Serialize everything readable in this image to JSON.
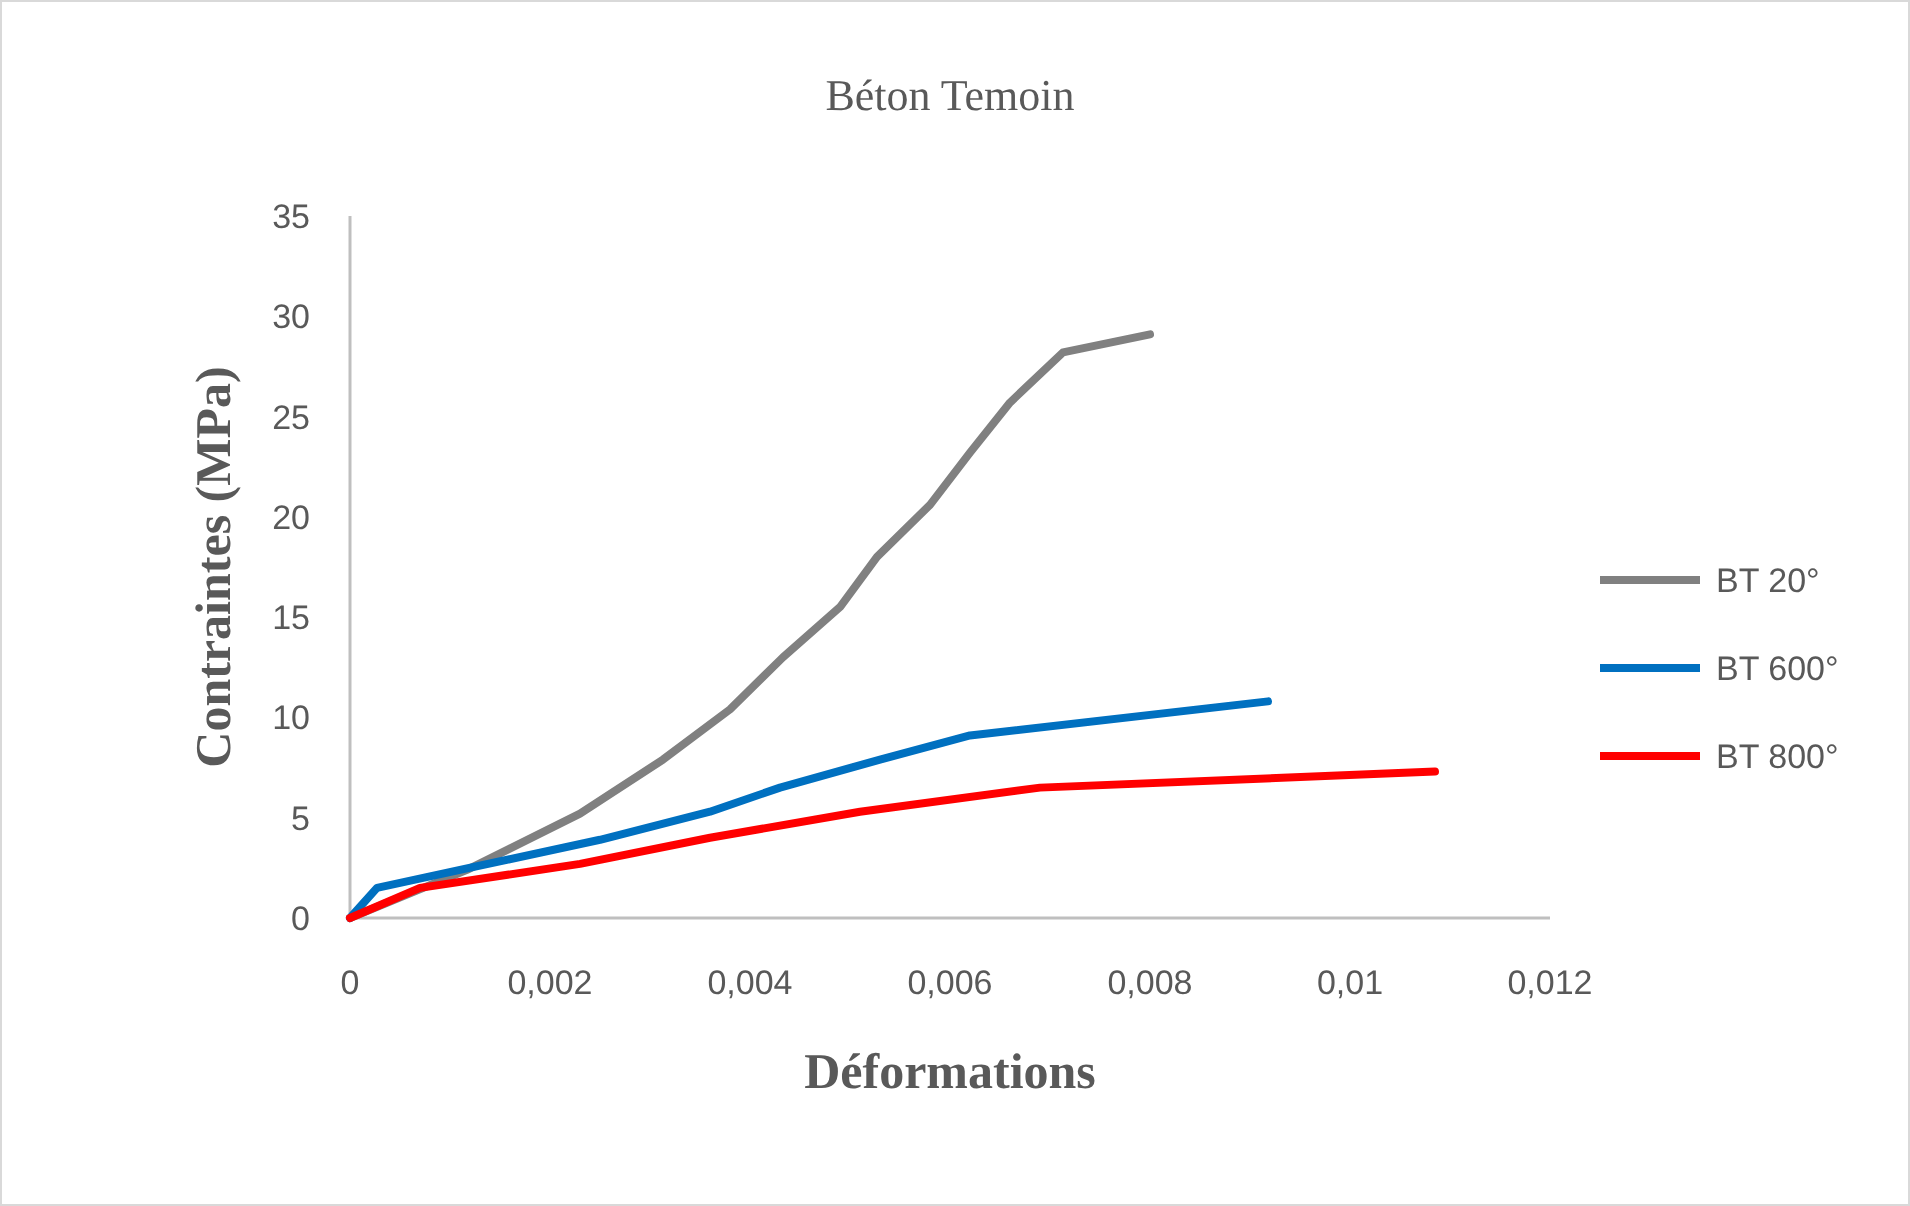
{
  "chart_data": {
    "type": "line",
    "title": "Béton Temoin",
    "xlabel": "Déformations",
    "ylabel": "Contraintes (MPa)",
    "xlim": [
      0,
      0.012
    ],
    "xticks": [
      {
        "value": 0,
        "label": "0"
      },
      {
        "value": 0.002,
        "label": "0,002"
      },
      {
        "value": 0.004,
        "label": "0,004"
      },
      {
        "value": 0.006,
        "label": "0,006"
      },
      {
        "value": 0.008,
        "label": "0,008"
      },
      {
        "value": 0.01,
        "label": "0,01"
      },
      {
        "value": 0.012,
        "label": "0,012"
      }
    ],
    "ylim": [
      0,
      35
    ],
    "yticks": [
      0,
      5,
      10,
      15,
      20,
      25,
      30,
      35
    ],
    "grid": false,
    "legend": "right",
    "marker": "none",
    "line_style": "solid",
    "series": [
      {
        "name": "BT 20°",
        "color": "#808080",
        "x": [
          0,
          0.00117,
          0.0023,
          0.00313,
          0.0038,
          0.00433,
          0.0049,
          0.00527,
          0.0058,
          0.0062,
          0.0066,
          0.00713,
          0.008
        ],
        "values": [
          0,
          2.4,
          5.2,
          7.9,
          10.4,
          13.0,
          15.5,
          18.0,
          20.6,
          23.2,
          25.7,
          28.2,
          29.1
        ]
      },
      {
        "name": "BT 600°",
        "color": "#0070c0",
        "x": [
          0,
          0.00027,
          0.0011,
          0.0025,
          0.0036,
          0.0043,
          0.0053,
          0.0062,
          0.00918
        ],
        "values": [
          0,
          1.5,
          2.4,
          3.9,
          5.3,
          6.5,
          7.9,
          9.1,
          10.8
        ]
      },
      {
        "name": "BT 800°",
        "color": "#ff0000",
        "x": [
          0,
          0.0007,
          0.0023,
          0.0036,
          0.0051,
          0.0069,
          0.01085
        ],
        "values": [
          0,
          1.5,
          2.7,
          4.0,
          5.3,
          6.5,
          7.3
        ]
      }
    ]
  }
}
